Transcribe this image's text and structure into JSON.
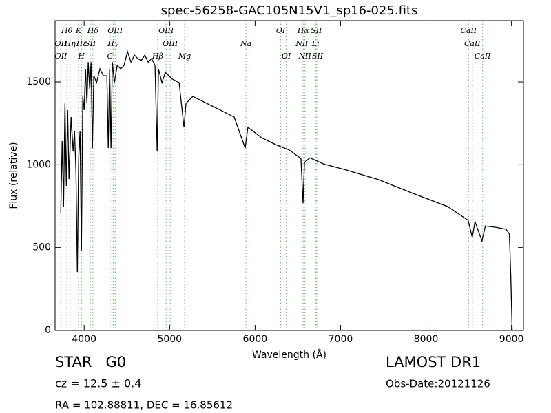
{
  "chart_data": {
    "type": "line",
    "title": "spec-56258-GAC105N15V1_sp16-025.fits",
    "x_label": "Wavelength (Å)",
    "y_label": "Flux (relative)",
    "color": "#000000",
    "xlim": [
      3660,
      9140
    ],
    "ylim": [
      0,
      1870
    ],
    "xticks": [
      4000,
      5000,
      6000,
      7000,
      8000,
      9000
    ],
    "yticks": [
      0,
      500,
      1000,
      1500
    ],
    "x": [
      3726,
      3743,
      3759,
      3775,
      3791,
      3807,
      3823,
      3847,
      3871,
      3887,
      3904,
      3920,
      3936,
      3952,
      3968,
      3984,
      4000,
      4016,
      4032,
      4048,
      4065,
      4081,
      4097,
      4113,
      4145,
      4185,
      4226,
      4266,
      4282,
      4298,
      4314,
      4330,
      4354,
      4387,
      4427,
      4467,
      4507,
      4548,
      4588,
      4628,
      4668,
      4709,
      4749,
      4789,
      4829,
      4854,
      4870,
      4910,
      4950,
      5031,
      5111,
      5168,
      5192,
      5272,
      5433,
      5594,
      5755,
      5884,
      5916,
      6078,
      6239,
      6400,
      6480,
      6536,
      6561,
      6577,
      6641,
      6802,
      7044,
      7446,
      7849,
      8252,
      8493,
      8541,
      8573,
      8654,
      8694,
      8815,
      8936,
      8976,
      8992,
      9008
    ],
    "values": [
      706,
      1143,
      748,
      1371,
      873,
      1330,
      914,
      1288,
      1080,
      1205,
      956,
      353,
      1038,
      1205,
      478,
      1413,
      1330,
      1579,
      1371,
      1620,
      1454,
      1620,
      1101,
      1537,
      1496,
      1579,
      1537,
      1537,
      1101,
      1579,
      1101,
      1620,
      1496,
      1600,
      1579,
      1600,
      1683,
      1620,
      1662,
      1641,
      1629,
      1662,
      1620,
      1641,
      1600,
      1080,
      1579,
      1496,
      1558,
      1517,
      1496,
      1226,
      1371,
      1413,
      1371,
      1330,
      1288,
      1101,
      1226,
      1163,
      1122,
      1089,
      1059,
      1038,
      768,
      1013,
      1042,
      1005,
      972,
      910,
      827,
      748,
      665,
      561,
      657,
      540,
      631,
      623,
      611,
      582,
      332,
      0
    ],
    "line_color": "#7fbf7f",
    "spectral_lines": [
      [
        {
          "wavelength": 3798,
          "label": "Hθ"
        },
        {
          "wavelength": 3934,
          "label": "K"
        },
        {
          "wavelength": 4102,
          "label": "Hδ"
        },
        {
          "wavelength": 4363,
          "label": "OIII"
        },
        {
          "wavelength": 4959,
          "label": "OIII"
        },
        {
          "wavelength": 6300,
          "label": "OI"
        },
        {
          "wavelength": 6563,
          "label": "Hα"
        },
        {
          "wavelength": 6716,
          "label": "SII"
        },
        {
          "wavelength": 8498,
          "label": "CaII"
        }
      ],
      [
        {
          "wavelength": 3727,
          "label": "OII"
        },
        {
          "wavelength": 3835,
          "label": "Hη"
        },
        {
          "wavelength": 3970,
          "label": "Hε"
        },
        {
          "wavelength": 4072,
          "label": "SII"
        },
        {
          "wavelength": 4340,
          "label": "Hγ"
        },
        {
          "wavelength": 5007,
          "label": "OIII"
        },
        {
          "wavelength": 5893,
          "label": "Na"
        },
        {
          "wavelength": 6548,
          "label": "NII"
        },
        {
          "wavelength": 6708,
          "label": "Li"
        },
        {
          "wavelength": 8542,
          "label": "CaII"
        }
      ],
      [
        {
          "wavelength": 3729,
          "label": "OII"
        },
        {
          "wavelength": 3968,
          "label": "H"
        },
        {
          "wavelength": 4304,
          "label": "G"
        },
        {
          "wavelength": 4861,
          "label": "Hβ"
        },
        {
          "wavelength": 5175,
          "label": "Mg"
        },
        {
          "wavelength": 6364,
          "label": "OI"
        },
        {
          "wavelength": 6583,
          "label": "NII"
        },
        {
          "wavelength": 6731,
          "label": "SII"
        },
        {
          "wavelength": 8662,
          "label": "CaII"
        }
      ]
    ],
    "object_class": "STAR   G0",
    "redshift": "cz = 12.5 ± 0.4",
    "coordinates": "RA = 102.88811, DEC = 16.85612",
    "survey": "LAMOST DR1",
    "obs_date": "Obs-Date:20121126"
  }
}
